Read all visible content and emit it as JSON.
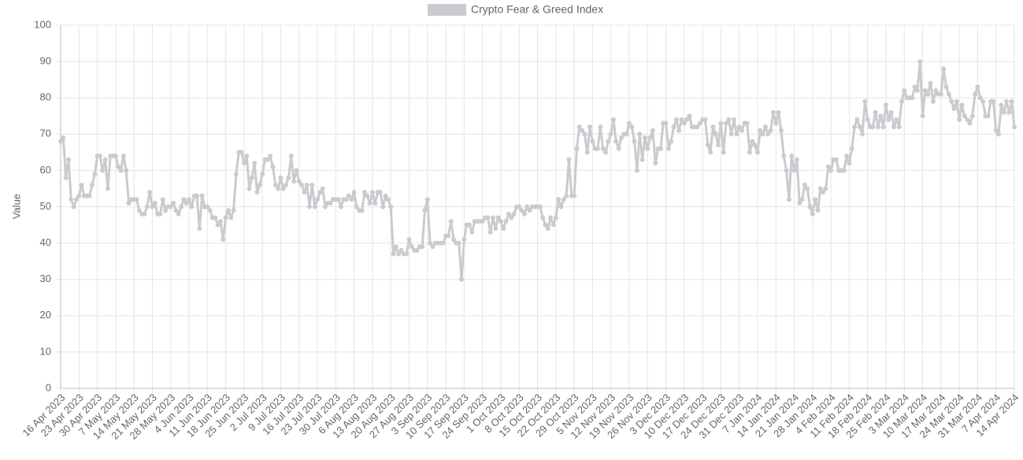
{
  "chart_data": {
    "type": "line",
    "y_label": "Value",
    "ylim": [
      0,
      100
    ],
    "yticks": [
      0,
      10,
      20,
      30,
      40,
      50,
      60,
      70,
      80,
      90,
      100
    ],
    "grid": true,
    "legend": "top",
    "categories": [
      "16 Apr 2023",
      null,
      null,
      null,
      null,
      null,
      null,
      "23 Apr 2023",
      null,
      null,
      null,
      null,
      null,
      null,
      "30 Apr 2023",
      null,
      null,
      null,
      null,
      null,
      null,
      "7 May 2023",
      null,
      null,
      null,
      null,
      null,
      null,
      "14 May 2023",
      null,
      null,
      null,
      null,
      null,
      null,
      "21 May 2023",
      null,
      null,
      null,
      null,
      null,
      null,
      "28 May 2023",
      null,
      null,
      null,
      null,
      null,
      null,
      "4 Jun 2023",
      null,
      null,
      null,
      null,
      null,
      null,
      "11 Jun 2023",
      null,
      null,
      null,
      null,
      null,
      null,
      "18 Jun 2023",
      null,
      null,
      null,
      null,
      null,
      null,
      "25 Jun 2023",
      null,
      null,
      null,
      null,
      null,
      null,
      "2 Jul 2023",
      null,
      null,
      null,
      null,
      null,
      null,
      "9 Jul 2023",
      null,
      null,
      null,
      null,
      null,
      null,
      "16 Jul 2023",
      null,
      null,
      null,
      null,
      null,
      null,
      "23 Jul 2023",
      null,
      null,
      null,
      null,
      null,
      null,
      "30 Jul 2023",
      null,
      null,
      null,
      null,
      null,
      null,
      "6 Aug 2023",
      null,
      null,
      null,
      null,
      null,
      null,
      "13 Aug 2023",
      null,
      null,
      null,
      null,
      null,
      null,
      "20 Aug 2023",
      null,
      null,
      null,
      null,
      null,
      null,
      "27 Aug 2023",
      null,
      null,
      null,
      null,
      null,
      null,
      "3 Sep 2023",
      null,
      null,
      null,
      null,
      null,
      null,
      "10 Sep 2023",
      null,
      null,
      null,
      null,
      null,
      null,
      "17 Sep 2023",
      null,
      null,
      null,
      null,
      null,
      null,
      "24 Sep 2023",
      null,
      null,
      null,
      null,
      null,
      null,
      "1 Oct 2023",
      null,
      null,
      null,
      null,
      null,
      null,
      "8 Oct 2023",
      null,
      null,
      null,
      null,
      null,
      null,
      "15 Oct 2023",
      null,
      null,
      null,
      null,
      null,
      null,
      "22 Oct 2023",
      null,
      null,
      null,
      null,
      null,
      null,
      "29 Oct 2023",
      null,
      null,
      null,
      null,
      null,
      null,
      "5 Nov 2023",
      null,
      null,
      null,
      null,
      null,
      null,
      "12 Nov 2023",
      null,
      null,
      null,
      null,
      null,
      null,
      "19 Nov 2023",
      null,
      null,
      null,
      null,
      null,
      null,
      "26 Nov 2023",
      null,
      null,
      null,
      null,
      null,
      null,
      "3 Dec 2023",
      null,
      null,
      null,
      null,
      null,
      null,
      "10 Dec 2023",
      null,
      null,
      null,
      null,
      null,
      null,
      "17 Dec 2023",
      null,
      null,
      null,
      null,
      null,
      null,
      "24 Dec 2023",
      null,
      null,
      null,
      null,
      null,
      null,
      "31 Dec 2023",
      null,
      null,
      null,
      null,
      null,
      null,
      "7 Jan 2024",
      null,
      null,
      null,
      null,
      null,
      null,
      "14 Jan 2024",
      null,
      null,
      null,
      null,
      null,
      null,
      "21 Jan 2024",
      null,
      null,
      null,
      null,
      null,
      null,
      "28 Jan 2024",
      null,
      null,
      null,
      null,
      null,
      null,
      "4 Feb 2024",
      null,
      null,
      null,
      null,
      null,
      null,
      "11 Feb 2024",
      null,
      null,
      null,
      null,
      null,
      null,
      "18 Feb 2024",
      null,
      null,
      null,
      null,
      null,
      null,
      "25 Feb 2024",
      null,
      null,
      null,
      null,
      null,
      null,
      "3 Mar 2024",
      null,
      null,
      null,
      null,
      null,
      null,
      "10 Mar 2024",
      null,
      null,
      null,
      null,
      null,
      null,
      "17 Mar 2024",
      null,
      null,
      null,
      null,
      null,
      null,
      "24 Mar 2024",
      null,
      null,
      null,
      null,
      null,
      null,
      "31 Mar 2024",
      null,
      null,
      null,
      null,
      null,
      null,
      "7 Apr 2024",
      null,
      null,
      null,
      null,
      null,
      null,
      "14 Apr 2024"
    ],
    "series": [
      {
        "name": "Crypto Fear & Greed Index",
        "color": "#c9cbcf",
        "values": [
          68,
          69,
          58,
          63,
          52,
          50,
          52,
          53,
          56,
          53,
          53,
          53,
          56,
          59,
          64,
          64,
          60,
          63,
          55,
          64,
          64,
          64,
          61,
          60,
          64,
          60,
          51,
          52,
          52,
          52,
          49,
          48,
          48,
          50,
          54,
          50,
          51,
          48,
          48,
          52,
          49,
          50,
          50,
          51,
          49,
          48,
          50,
          52,
          51,
          52,
          50,
          53,
          53,
          44,
          53,
          50,
          50,
          49,
          47,
          47,
          45,
          46,
          41,
          47,
          49,
          47,
          49,
          59,
          65,
          65,
          62,
          64,
          55,
          58,
          62,
          54,
          56,
          59,
          63,
          63,
          64,
          61,
          56,
          55,
          58,
          55,
          56,
          58,
          64,
          57,
          60,
          57,
          56,
          54,
          56,
          50,
          56,
          50,
          52,
          54,
          55,
          50,
          51,
          51,
          52,
          52,
          52,
          50,
          52,
          52,
          53,
          52,
          54,
          50,
          49,
          49,
          54,
          53,
          51,
          54,
          51,
          54,
          54,
          50,
          53,
          52,
          50,
          37,
          39,
          37,
          38,
          37,
          37,
          41,
          39,
          38,
          38,
          39,
          39,
          49,
          52,
          40,
          39,
          40,
          40,
          40,
          40,
          42,
          42,
          46,
          41,
          40,
          40,
          30,
          41,
          45,
          45,
          43,
          46,
          46,
          46,
          46,
          47,
          47,
          43,
          47,
          44,
          47,
          46,
          44,
          46,
          48,
          47,
          48,
          50,
          50,
          49,
          48,
          50,
          49,
          50,
          50,
          50,
          50,
          47,
          45,
          44,
          47,
          45,
          47,
          52,
          50,
          52,
          53,
          63,
          53,
          53,
          66,
          72,
          71,
          70,
          65,
          72,
          68,
          66,
          66,
          72,
          66,
          65,
          68,
          70,
          74,
          68,
          66,
          69,
          70,
          70,
          73,
          72,
          68,
          60,
          70,
          63,
          69,
          66,
          69,
          71,
          62,
          66,
          66,
          73,
          73,
          66,
          68,
          72,
          74,
          71,
          74,
          73,
          74,
          75,
          72,
          72,
          72,
          73,
          74,
          74,
          67,
          65,
          72,
          70,
          67,
          73,
          65,
          73,
          74,
          70,
          74,
          70,
          72,
          71,
          73,
          73,
          65,
          68,
          67,
          65,
          71,
          70,
          72,
          70,
          71,
          76,
          73,
          76,
          71,
          64,
          60,
          52,
          64,
          60,
          63,
          51,
          52,
          56,
          55,
          50,
          48,
          52,
          49,
          55,
          54,
          55,
          61,
          60,
          63,
          63,
          60,
          60,
          60,
          64,
          62,
          66,
          72,
          74,
          72,
          70,
          79,
          74,
          72,
          72,
          76,
          72,
          75,
          72,
          78,
          74,
          76,
          72,
          74,
          72,
          79,
          82,
          80,
          80,
          80,
          83,
          82,
          90,
          75,
          82,
          81,
          84,
          79,
          82,
          81,
          81,
          88,
          83,
          81,
          79,
          77,
          79,
          74,
          78,
          75,
          74,
          73,
          75,
          81,
          83,
          80,
          79,
          75,
          75,
          79,
          79,
          71,
          70,
          78,
          76,
          79,
          76,
          79,
          72
        ]
      }
    ]
  }
}
